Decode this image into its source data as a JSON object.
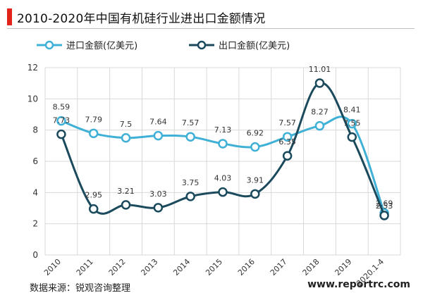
{
  "title": "2010-2020年中国有机硅行业进出口金额情况",
  "source": "数据来源：锐观咨询整理",
  "website": "www.reportrc.com",
  "colors": {
    "accent": "#e2231a",
    "import": "#3fb0d6",
    "export": "#1b4a5c"
  },
  "chart_data": {
    "type": "line",
    "categories": [
      "2010",
      "2011",
      "2012",
      "2013",
      "2014",
      "2015",
      "2016",
      "2017",
      "2018",
      "2019",
      "2020.1-4"
    ],
    "ylim": [
      0,
      12
    ],
    "yticks": [
      0,
      2,
      4,
      6,
      8,
      10,
      12
    ],
    "grid": true,
    "legend": "top-left",
    "series": [
      {
        "name": "进口金额(亿美元)",
        "values": [
          8.59,
          7.79,
          7.5,
          7.64,
          7.57,
          7.13,
          6.92,
          7.57,
          8.27,
          8.41,
          2.69
        ],
        "labels": [
          "8.59",
          "7.79",
          "7.5",
          "7.64",
          "7.57",
          "7.13",
          "6.92",
          "7.57",
          "8.27",
          "8.41",
          "2.69"
        ]
      },
      {
        "name": "出口金额(亿美元)",
        "values": [
          7.73,
          2.95,
          3.21,
          3.03,
          3.75,
          4.03,
          3.91,
          6.35,
          11.01,
          7.55,
          2.53
        ],
        "labels": [
          "7.73",
          "2.95",
          "3.21",
          "3.03",
          "3.75",
          "4.03",
          "3.91",
          "6.35",
          "11.01",
          "7.55",
          "2.53"
        ]
      }
    ]
  }
}
